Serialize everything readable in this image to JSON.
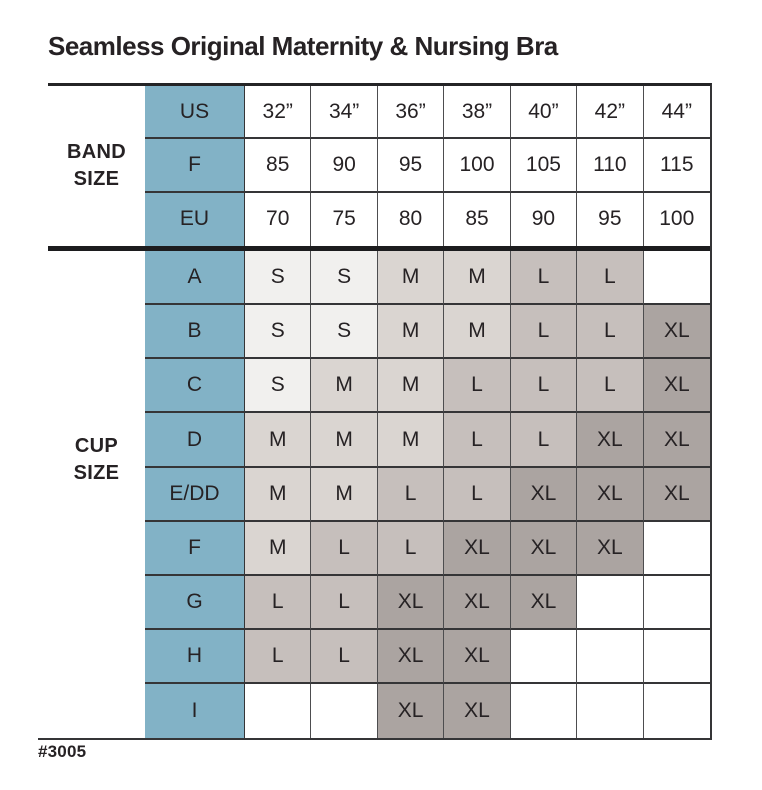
{
  "page": {
    "title": "Seamless Original Maternity & Nursing Bra",
    "footnote": "#3005"
  },
  "colors": {
    "header_blue": "#82b2c6",
    "size_s": "#f1f0ee",
    "size_m": "#dad5d1",
    "size_l": "#c6bfbc",
    "size_xl": "#aba4a1",
    "empty_cell": "#ffffff",
    "text": "#262224"
  },
  "chart_data": {
    "type": "table",
    "title": "Seamless Original Maternity & Nursing Bra",
    "band_section_label": "BAND\nSIZE",
    "cup_section_label": "CUP\nSIZE",
    "band_rows": [
      {
        "header": "US",
        "values": [
          "32”",
          "34”",
          "36”",
          "38”",
          "40”",
          "42”",
          "44”"
        ]
      },
      {
        "header": "F",
        "values": [
          "85",
          "90",
          "95",
          "100",
          "105",
          "110",
          "115"
        ]
      },
      {
        "header": "EU",
        "values": [
          "70",
          "75",
          "80",
          "85",
          "90",
          "95",
          "100"
        ]
      }
    ],
    "cup_rows": [
      {
        "header": "A",
        "values": [
          "S",
          "S",
          "M",
          "M",
          "L",
          "L",
          ""
        ]
      },
      {
        "header": "B",
        "values": [
          "S",
          "S",
          "M",
          "M",
          "L",
          "L",
          "XL"
        ]
      },
      {
        "header": "C",
        "values": [
          "S",
          "M",
          "M",
          "L",
          "L",
          "L",
          "XL"
        ]
      },
      {
        "header": "D",
        "values": [
          "M",
          "M",
          "M",
          "L",
          "L",
          "XL",
          "XL"
        ]
      },
      {
        "header": "E/DD",
        "values": [
          "M",
          "M",
          "L",
          "L",
          "XL",
          "XL",
          "XL"
        ]
      },
      {
        "header": "F",
        "values": [
          "M",
          "L",
          "L",
          "XL",
          "XL",
          "XL",
          ""
        ]
      },
      {
        "header": "G",
        "values": [
          "L",
          "L",
          "XL",
          "XL",
          "XL",
          "",
          ""
        ]
      },
      {
        "header": "H",
        "values": [
          "L",
          "L",
          "XL",
          "XL",
          "",
          "",
          ""
        ]
      },
      {
        "header": "I",
        "values": [
          "",
          "",
          "XL",
          "XL",
          "",
          "",
          ""
        ]
      }
    ]
  }
}
